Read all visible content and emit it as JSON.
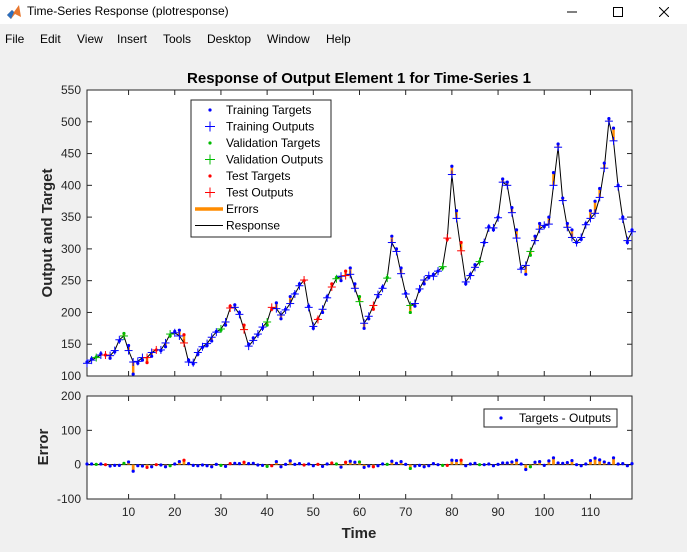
{
  "window": {
    "title": "Time-Series Response (plotresponse)",
    "icon": "matlab-icon",
    "controls": [
      "minimize-icon",
      "maximize-icon",
      "close-icon"
    ]
  },
  "menu": [
    "File",
    "Edit",
    "View",
    "Insert",
    "Tools",
    "Desktop",
    "Window",
    "Help"
  ],
  "colors": {
    "target": "#0000ff",
    "validation": "#00bb00",
    "test": "#ff0000",
    "error": "#ff8c00",
    "response": "#000000"
  },
  "chart_data": [
    {
      "type": "line",
      "title": "Response of Output Element 1 for Time-Series 1",
      "xlabel": "",
      "ylabel": "Output and Target",
      "xlim": [
        1,
        119
      ],
      "ylim": [
        100,
        550
      ],
      "yticks": [
        100,
        150,
        200,
        250,
        300,
        350,
        400,
        450,
        500,
        550
      ],
      "legend": {
        "position": "top-left",
        "entries": [
          "Training Targets",
          "Training Outputs",
          "Validation Targets",
          "Validation Outputs",
          "Test Targets",
          "Test Outputs",
          "Errors",
          "Response"
        ]
      },
      "x": [
        1,
        2,
        3,
        4,
        5,
        6,
        7,
        8,
        9,
        10,
        11,
        12,
        13,
        14,
        15,
        16,
        17,
        18,
        19,
        20,
        21,
        22,
        23,
        24,
        25,
        26,
        27,
        28,
        29,
        30,
        31,
        32,
        33,
        34,
        35,
        36,
        37,
        38,
        39,
        40,
        41,
        42,
        43,
        44,
        45,
        46,
        47,
        48,
        49,
        50,
        51,
        52,
        53,
        54,
        55,
        56,
        57,
        58,
        59,
        60,
        61,
        62,
        63,
        64,
        65,
        66,
        67,
        68,
        69,
        70,
        71,
        72,
        73,
        74,
        75,
        76,
        77,
        78,
        79,
        80,
        81,
        82,
        83,
        84,
        85,
        86,
        87,
        88,
        89,
        90,
        91,
        92,
        93,
        94,
        95,
        96,
        97,
        98,
        99,
        100,
        101,
        102,
        103,
        104,
        105,
        106,
        107,
        108,
        109,
        110,
        111,
        112,
        113,
        114,
        115,
        116,
        117,
        118,
        119
      ],
      "series": [
        {
          "name": "Targets",
          "values": [
            122,
            127,
            130,
            135,
            133,
            128,
            138,
            155,
            167,
            148,
            103,
            120,
            125,
            121,
            131,
            141,
            140,
            146,
            163,
            170,
            172,
            165,
            125,
            119,
            134,
            145,
            148,
            155,
            170,
            172,
            180,
            210,
            212,
            200,
            180,
            150,
            160,
            165,
            175,
            180,
            205,
            215,
            190,
            205,
            225,
            230,
            245,
            250,
            210,
            175,
            190,
            200,
            225,
            245,
            255,
            250,
            265,
            270,
            245,
            225,
            175,
            190,
            205,
            225,
            240,
            255,
            320,
            300,
            270,
            230,
            200,
            210,
            235,
            245,
            255,
            260,
            265,
            270,
            315,
            430,
            360,
            310,
            245,
            260,
            275,
            280,
            310,
            335,
            330,
            350,
            410,
            405,
            365,
            330,
            270,
            260,
            290,
            320,
            340,
            335,
            350,
            420,
            465,
            380,
            340,
            330,
            310,
            315,
            340,
            360,
            375,
            395,
            435,
            505,
            490,
            400,
            350,
            310,
            330
          ]
        },
        {
          "name": "Outputs",
          "values": [
            120,
            125,
            129,
            133,
            133,
            132,
            140,
            157,
            163,
            140,
            122,
            123,
            129,
            129,
            137,
            141,
            141,
            152,
            166,
            168,
            163,
            152,
            122,
            121,
            137,
            146,
            151,
            161,
            169,
            174,
            185,
            207,
            208,
            197,
            173,
            147,
            156,
            166,
            177,
            185,
            208,
            206,
            196,
            204,
            214,
            229,
            242,
            251,
            208,
            178,
            189,
            205,
            223,
            240,
            253,
            257,
            258,
            260,
            238,
            217,
            183,
            194,
            211,
            228,
            238,
            254,
            310,
            296,
            261,
            229,
            211,
            214,
            237,
            251,
            258,
            257,
            265,
            272,
            317,
            417,
            348,
            297,
            248,
            258,
            271,
            280,
            310,
            333,
            333,
            349,
            405,
            400,
            357,
            317,
            268,
            274,
            296,
            313,
            331,
            337,
            339,
            400,
            460,
            376,
            334,
            318,
            310,
            318,
            338,
            348,
            356,
            381,
            427,
            501,
            470,
            398,
            347,
            313,
            327
          ]
        }
      ],
      "split": {
        "train": [
          1,
          2,
          4,
          6,
          7,
          8,
          10,
          11,
          12,
          13,
          15,
          17,
          18,
          20,
          21,
          23,
          24,
          25,
          26,
          27,
          28,
          29,
          31,
          33,
          34,
          36,
          37,
          38,
          39,
          42,
          43,
          44,
          45,
          46,
          47,
          49,
          50,
          52,
          53,
          56,
          58,
          59,
          61,
          62,
          64,
          65,
          67,
          68,
          69,
          70,
          72,
          73,
          74,
          75,
          76,
          77,
          80,
          81,
          83,
          84,
          85,
          87,
          88,
          89,
          90,
          91,
          92,
          93,
          94,
          95,
          96,
          98,
          99,
          100,
          101,
          102,
          103,
          104,
          105,
          106,
          107,
          108,
          109,
          110,
          111,
          112,
          113,
          114,
          115,
          116,
          117,
          118,
          119
        ],
        "validation": [
          3,
          9,
          19,
          30,
          40,
          55,
          60,
          66,
          71,
          78,
          86,
          97
        ],
        "test": [
          5,
          14,
          16,
          22,
          32,
          35,
          41,
          48,
          51,
          54,
          57,
          63,
          79,
          82
        ]
      }
    },
    {
      "type": "bar",
      "ylabel": "Error",
      "xlabel": "Time",
      "xlim": [
        1,
        119
      ],
      "ylim": [
        -100,
        200
      ],
      "yticks": [
        -100,
        0,
        100,
        200
      ],
      "xticks": [
        10,
        20,
        30,
        40,
        50,
        60,
        70,
        80,
        90,
        100,
        110
      ],
      "legend": {
        "position": "top-right",
        "entries": [
          "Targets - Outputs"
        ]
      }
    }
  ]
}
